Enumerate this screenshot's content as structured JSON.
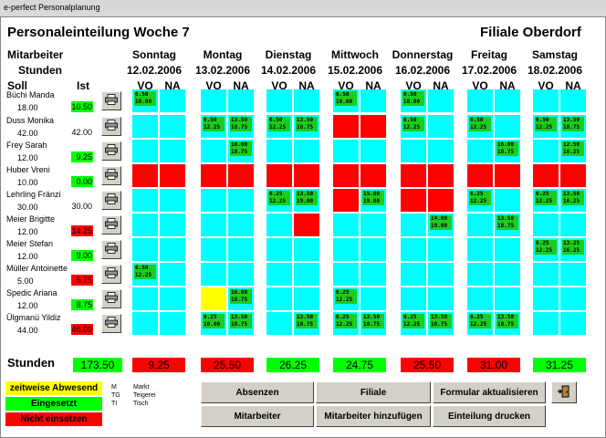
{
  "window_title": "e-perfect Personalplanung",
  "title": "Personaleinteilung Woche 7",
  "branch": "Filiale Oberdorf",
  "header": {
    "mitarbeiter": "Mitarbeiter",
    "stunden": "Stunden",
    "soll": "Soll",
    "ist": "Ist"
  },
  "days": [
    {
      "name": "Sonntag",
      "date": "12.02.2006"
    },
    {
      "name": "Montag",
      "date": "13.02.2006"
    },
    {
      "name": "Dienstag",
      "date": "14.02.2006"
    },
    {
      "name": "Mittwoch",
      "date": "15.02.2006"
    },
    {
      "name": "Donnerstag",
      "date": "16.02.2006"
    },
    {
      "name": "Freitag",
      "date": "17.02.2006"
    },
    {
      "name": "Samstag",
      "date": "18.02.2006"
    }
  ],
  "shift_labels": {
    "vo": "VO",
    "na": "NA"
  },
  "employees": [
    {
      "name": "Büchi Manda",
      "soll": "18.00",
      "ist": "10.50",
      "ist_status": "green",
      "cells": [
        {
          "c": "cyan",
          "t": [
            "6.50",
            "10.00"
          ]
        },
        {
          "c": "cyan"
        },
        {
          "c": "cyan"
        },
        {
          "c": "cyan"
        },
        {
          "c": "cyan"
        },
        {
          "c": "cyan"
        },
        {
          "c": "cyan",
          "t": [
            "6.50",
            "10.00"
          ]
        },
        {
          "c": "cyan"
        },
        {
          "c": "cyan",
          "t": [
            "6.50",
            "10.00"
          ]
        },
        {
          "c": "cyan"
        },
        {
          "c": "cyan"
        },
        {
          "c": "cyan"
        },
        {
          "c": "cyan"
        },
        {
          "c": "cyan"
        }
      ]
    },
    {
      "name": "Duss Monika",
      "soll": "42.00",
      "ist": "42.00",
      "ist_status": "none",
      "cells": [
        {
          "c": "cyan"
        },
        {
          "c": "cyan"
        },
        {
          "c": "cyan",
          "t": [
            "6.50",
            "12.25"
          ]
        },
        {
          "c": "cyan",
          "t": [
            "13.50",
            "18.75"
          ]
        },
        {
          "c": "cyan",
          "t": [
            "6.50",
            "12.25"
          ]
        },
        {
          "c": "cyan",
          "t": [
            "13.50",
            "18.75"
          ]
        },
        {
          "c": "red"
        },
        {
          "c": "red"
        },
        {
          "c": "cyan",
          "t": [
            "6.50",
            "12.25"
          ]
        },
        {
          "c": "cyan"
        },
        {
          "c": "cyan",
          "t": [
            "6.50",
            "12.25"
          ]
        },
        {
          "c": "cyan"
        },
        {
          "c": "cyan",
          "t": [
            "6.50",
            "12.25"
          ]
        },
        {
          "c": "cyan",
          "t": [
            "13.50",
            "18.75"
          ]
        }
      ]
    },
    {
      "name": "Frey Sarah",
      "soll": "12.00",
      "ist": "9.25",
      "ist_status": "green",
      "cells": [
        {
          "c": "cyan"
        },
        {
          "c": "cyan"
        },
        {
          "c": "cyan"
        },
        {
          "c": "cyan",
          "t": [
            "16.00",
            "18.75"
          ]
        },
        {
          "c": "cyan"
        },
        {
          "c": "cyan"
        },
        {
          "c": "cyan"
        },
        {
          "c": "cyan"
        },
        {
          "c": "cyan"
        },
        {
          "c": "cyan"
        },
        {
          "c": "cyan"
        },
        {
          "c": "cyan",
          "t": [
            "16.00",
            "18.75"
          ]
        },
        {
          "c": "cyan"
        },
        {
          "c": "cyan",
          "t": [
            "12.50",
            "16.25"
          ]
        }
      ]
    },
    {
      "name": "Huber Vreni",
      "soll": "10.00",
      "ist": "0.00",
      "ist_status": "green",
      "cells": [
        {
          "c": "red"
        },
        {
          "c": "red"
        },
        {
          "c": "red"
        },
        {
          "c": "red"
        },
        {
          "c": "red"
        },
        {
          "c": "red"
        },
        {
          "c": "red"
        },
        {
          "c": "red"
        },
        {
          "c": "red"
        },
        {
          "c": "red"
        },
        {
          "c": "red"
        },
        {
          "c": "red"
        },
        {
          "c": "red"
        },
        {
          "c": "red"
        }
      ]
    },
    {
      "name": "Lehrling Fränzi",
      "soll": "30.00",
      "ist": "30.00",
      "ist_status": "none",
      "cells": [
        {
          "c": "cyan"
        },
        {
          "c": "cyan"
        },
        {
          "c": "cyan"
        },
        {
          "c": "cyan"
        },
        {
          "c": "cyan",
          "t": [
            "6.25",
            "12.25"
          ]
        },
        {
          "c": "cyan",
          "t": [
            "13.50",
            "19.00"
          ]
        },
        {
          "c": "red"
        },
        {
          "c": "cyan",
          "t": [
            "15.00",
            "19.00"
          ]
        },
        {
          "c": "red"
        },
        {
          "c": "red"
        },
        {
          "c": "cyan",
          "t": [
            "6.25",
            "12.25"
          ]
        },
        {
          "c": "cyan"
        },
        {
          "c": "cyan",
          "t": [
            "6.25",
            "12.25"
          ]
        },
        {
          "c": "cyan",
          "t": [
            "13.50",
            "16.25"
          ]
        }
      ]
    },
    {
      "name": "Meier Brigitte",
      "soll": "12.00",
      "ist": "14.25",
      "ist_status": "red",
      "cells": [
        {
          "c": "cyan"
        },
        {
          "c": "cyan"
        },
        {
          "c": "cyan"
        },
        {
          "c": "cyan"
        },
        {
          "c": "cyan"
        },
        {
          "c": "red"
        },
        {
          "c": "cyan"
        },
        {
          "c": "cyan"
        },
        {
          "c": "cyan"
        },
        {
          "c": "cyan",
          "t": [
            "14.00",
            "19.00"
          ]
        },
        {
          "c": "cyan"
        },
        {
          "c": "cyan",
          "t": [
            "13.50",
            "18.75"
          ]
        },
        {
          "c": "cyan"
        },
        {
          "c": "cyan"
        }
      ]
    },
    {
      "name": "Meier Stefan",
      "soll": "12.00",
      "ist": "9.00",
      "ist_status": "green",
      "cells": [
        {
          "c": "cyan"
        },
        {
          "c": "cyan"
        },
        {
          "c": "cyan"
        },
        {
          "c": "cyan"
        },
        {
          "c": "cyan"
        },
        {
          "c": "cyan"
        },
        {
          "c": "cyan"
        },
        {
          "c": "cyan"
        },
        {
          "c": "cyan"
        },
        {
          "c": "cyan"
        },
        {
          "c": "cyan"
        },
        {
          "c": "cyan"
        },
        {
          "c": "cyan",
          "t": [
            "6.25",
            "12.25"
          ]
        },
        {
          "c": "cyan",
          "t": [
            "13.25",
            "16.25"
          ]
        }
      ]
    },
    {
      "name": "Müller Antoinette",
      "soll": "5.00",
      "ist": "5.75",
      "ist_status": "red",
      "cells": [
        {
          "c": "cyan",
          "t": [
            "6.50",
            "12.25"
          ]
        },
        {
          "c": "cyan"
        },
        {
          "c": "cyan"
        },
        {
          "c": "cyan"
        },
        {
          "c": "cyan"
        },
        {
          "c": "cyan"
        },
        {
          "c": "cyan"
        },
        {
          "c": "cyan"
        },
        {
          "c": "cyan"
        },
        {
          "c": "cyan"
        },
        {
          "c": "cyan"
        },
        {
          "c": "cyan"
        },
        {
          "c": "cyan"
        },
        {
          "c": "cyan"
        }
      ]
    },
    {
      "name": "Spedic Ariana",
      "soll": "12.00",
      "ist": "8.75",
      "ist_status": "green",
      "cells": [
        {
          "c": "cyan"
        },
        {
          "c": "cyan"
        },
        {
          "c": "yellow"
        },
        {
          "c": "cyan",
          "t": [
            "16.00",
            "18.75"
          ]
        },
        {
          "c": "cyan"
        },
        {
          "c": "cyan"
        },
        {
          "c": "cyan",
          "t": [
            "6.25",
            "12.25"
          ]
        },
        {
          "c": "cyan"
        },
        {
          "c": "cyan"
        },
        {
          "c": "cyan"
        },
        {
          "c": "cyan"
        },
        {
          "c": "cyan"
        },
        {
          "c": "cyan"
        },
        {
          "c": "cyan"
        }
      ]
    },
    {
      "name": "Ülgmanü Yildiz",
      "soll": "44.00",
      "ist": "46.00",
      "ist_status": "red",
      "cells": [
        {
          "c": "cyan"
        },
        {
          "c": "cyan"
        },
        {
          "c": "cyan",
          "t": [
            "6.25",
            "10.00"
          ]
        },
        {
          "c": "cyan",
          "t": [
            "13.50",
            "18.75"
          ]
        },
        {
          "c": "cyan"
        },
        {
          "c": "cyan",
          "t": [
            "13.50",
            "18.75"
          ]
        },
        {
          "c": "cyan",
          "t": [
            "6.25",
            "12.25"
          ]
        },
        {
          "c": "cyan",
          "t": [
            "13.50",
            "18.75"
          ]
        },
        {
          "c": "cyan",
          "t": [
            "6.25",
            "12.25"
          ]
        },
        {
          "c": "cyan",
          "t": [
            "13.50",
            "18.75"
          ]
        },
        {
          "c": "cyan",
          "t": [
            "6.25",
            "12.25"
          ]
        },
        {
          "c": "cyan",
          "t": [
            "13.50",
            "18.75"
          ]
        },
        {
          "c": "cyan"
        },
        {
          "c": "cyan"
        }
      ]
    }
  ],
  "totals": {
    "label": "Stunden",
    "all": {
      "value": "173.50",
      "status": "green"
    },
    "days": [
      {
        "value": "9.25",
        "status": "red"
      },
      {
        "value": "25.50",
        "status": "red"
      },
      {
        "value": "26.25",
        "status": "green"
      },
      {
        "value": "24.75",
        "status": "green"
      },
      {
        "value": "25.50",
        "status": "red"
      },
      {
        "value": "31.00",
        "status": "red"
      },
      {
        "value": "31.25",
        "status": "green"
      }
    ]
  },
  "legend": {
    "partial": "zeitweise Abwesend",
    "assigned": "Eingesetzt",
    "not_assigned": "Nicht einsetzen"
  },
  "abbreviations": [
    {
      "code": "M",
      "desc": "Markt"
    },
    {
      "code": "TG",
      "desc": "Teigerei"
    },
    {
      "code": "TI",
      "desc": "Tisch"
    }
  ],
  "buttons": {
    "absenzen": "Absenzen",
    "filiale": "Filiale",
    "formular": "Formular aktualisieren",
    "mitarbeiter": "Mitarbeiter",
    "mitarbeiter_add": "Mitarbeiter hinzufügen",
    "einteilung": "Einteilung drucken"
  },
  "colors": {
    "cyan": "#00ffff",
    "red": "#ff0000",
    "green": "#00ff00",
    "yellow": "#ffff00",
    "tag_green": "#1dcc1d",
    "button_face": "#d4d0c8"
  },
  "icons": {
    "print": "printer-icon",
    "exit": "exit-door-icon"
  }
}
